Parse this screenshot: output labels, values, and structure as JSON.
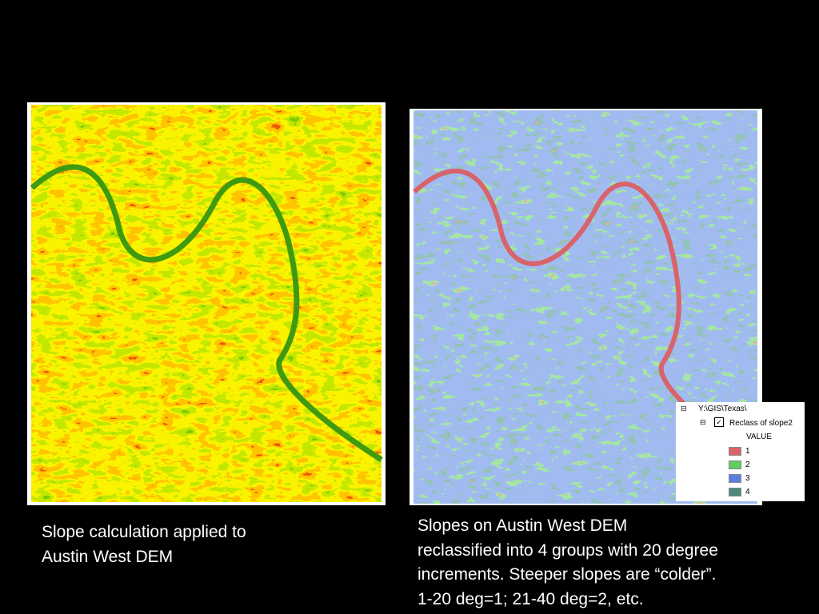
{
  "slide": {
    "left_caption": [
      "Slope calculation applied to",
      "Austin West DEM"
    ],
    "right_caption": [
      "Slopes on Austin West DEM",
      "reclassified into 4 groups with 20 degree",
      "increments.  Steeper slopes are “colder”.",
      "1-20 deg=1; 21-40 deg=2, etc."
    ],
    "legend": {
      "path": "Y:\\GIS\\Texas\\",
      "layer": "Reclass of slope2",
      "field": "VALUE",
      "items": [
        {
          "name": "1",
          "color": "#d9636b"
        },
        {
          "name": "2",
          "color": "#5fcf5f"
        },
        {
          "name": "3",
          "color": "#5b7fe0"
        },
        {
          "name": "4",
          "color": "#4a8a7a"
        }
      ]
    }
  }
}
